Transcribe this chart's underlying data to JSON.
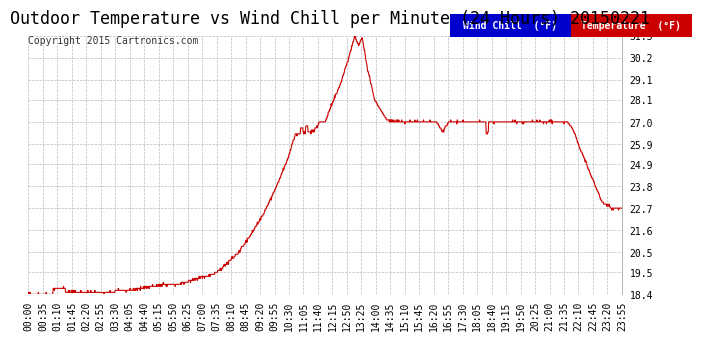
{
  "title": "Outdoor Temperature vs Wind Chill per Minute (24 Hours) 20150221",
  "copyright": "Copyright 2015 Cartronics.com",
  "ylim": [
    18.4,
    31.3
  ],
  "yticks": [
    18.4,
    19.5,
    20.5,
    21.6,
    22.7,
    23.8,
    24.9,
    25.9,
    27.0,
    28.1,
    29.1,
    30.2,
    31.3
  ],
  "bg_color": "#ffffff",
  "grid_color": "#bbbbbb",
  "line_color": "#cc0000",
  "legend_wind_bg": "#0000cc",
  "legend_temp_bg": "#cc0000",
  "legend_wind_label": "Wind Chill  (°F)",
  "legend_temp_label": "Temperature  (°F)",
  "title_fontsize": 12,
  "copyright_fontsize": 7,
  "tick_fontsize": 7,
  "xtick_labels": [
    "00:00",
    "00:35",
    "01:10",
    "01:45",
    "02:20",
    "02:55",
    "03:30",
    "04:05",
    "04:40",
    "05:15",
    "05:50",
    "06:25",
    "07:00",
    "07:35",
    "08:10",
    "08:45",
    "09:20",
    "09:55",
    "10:30",
    "11:05",
    "11:40",
    "12:15",
    "12:50",
    "13:25",
    "14:00",
    "14:35",
    "15:10",
    "15:45",
    "16:20",
    "16:55",
    "17:30",
    "18:05",
    "18:40",
    "19:15",
    "19:50",
    "20:25",
    "21:00",
    "21:35",
    "22:10",
    "22:45",
    "23:20",
    "23:55"
  ]
}
